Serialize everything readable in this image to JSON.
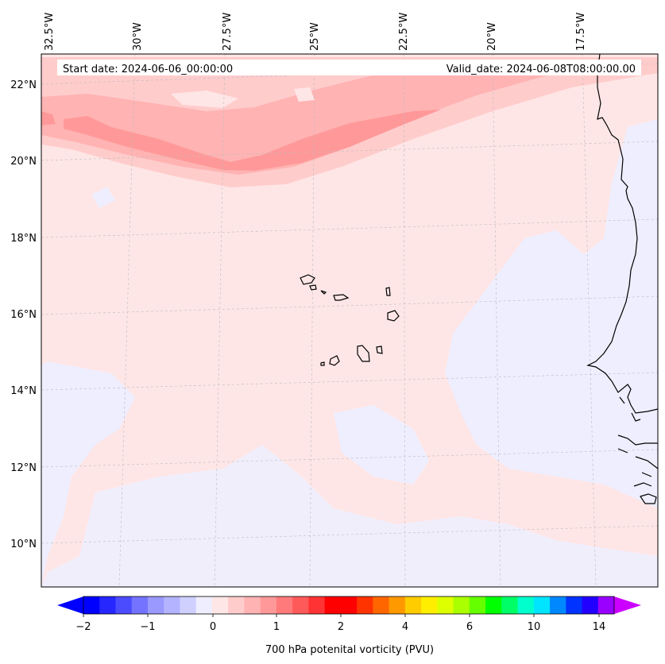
{
  "header": {
    "start_date": "Start date: 2024-06-06_00:00:00",
    "valid_date": "Valid_date: 2024-06-08T08:00:00.00"
  },
  "longitude_labels": [
    "32.5°W",
    "30°W",
    "27.5°W",
    "25°W",
    "22.5°W",
    "20°W",
    "17.5°W"
  ],
  "latitude_labels": [
    "22°N",
    "20°N",
    "18°N",
    "16°N",
    "14°N",
    "12°N",
    "10°N"
  ],
  "colorbar": {
    "label": "700 hPa potenital vorticity (PVU)",
    "ticks": [
      "−2",
      "−1",
      "0",
      "1",
      "2",
      "4",
      "6",
      "10",
      "14"
    ],
    "colors": [
      "#0000ff",
      "#2626ff",
      "#4c4cff",
      "#7373ff",
      "#9999ff",
      "#b3b3ff",
      "#d0d0ff",
      "#eeeeff",
      "#ffe6e6",
      "#ffcccc",
      "#ffb3b3",
      "#ff9999",
      "#ff7a7a",
      "#ff5a5a",
      "#ff3333",
      "#ff0000",
      "#ff0000",
      "#ff3300",
      "#ff6600",
      "#ff9900",
      "#ffcc00",
      "#ffee00",
      "#ddff00",
      "#aaff00",
      "#66ff00",
      "#00ff00",
      "#00ff66",
      "#00ffcc",
      "#00e5ff",
      "#0088ff",
      "#0033ff",
      "#2200ff",
      "#9900ff"
    ],
    "extend_left_color": "#0000ff",
    "extend_right_color": "#cc00ff"
  },
  "colors": {
    "background_field": "#ffe6e6",
    "weak_negative": "#eeeeff",
    "band_light": "#ffcccc",
    "band_mid": "#ffb3b3",
    "band_strong": "#ff9999"
  },
  "chart_data": {
    "type": "map",
    "field": "700 hPa potential vorticity (PVU)",
    "lon_range": [
      -32.5,
      -16
    ],
    "lat_range": [
      9,
      22.8
    ],
    "features": [
      "Cape Verde islands",
      "West African coastline"
    ],
    "max_band": "PV band ~1–1.5 PVU along 20–21°N"
  }
}
